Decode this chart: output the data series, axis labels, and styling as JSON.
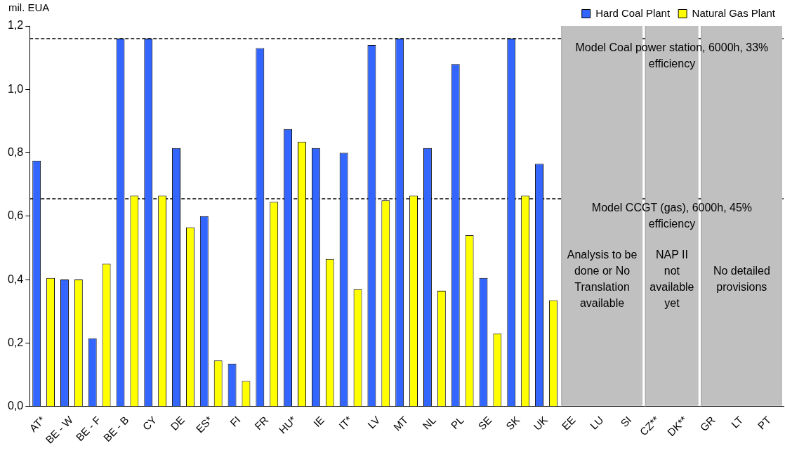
{
  "chart_data": {
    "type": "bar",
    "ylabel": "mil. EUA",
    "categories": [
      "AT*",
      "BE - W",
      "BE - F",
      "BE - B",
      "CY",
      "DE",
      "ES*",
      "FI",
      "FR",
      "HU*",
      "IE",
      "IT*",
      "LV",
      "MT",
      "NL",
      "PL",
      "SE",
      "SK",
      "UK",
      "EE",
      "LU",
      "SI",
      "CZ**",
      "DK**",
      "GR",
      "LT",
      "PT"
    ],
    "series": [
      {
        "name": "Hard Coal Plant",
        "color": "#3366ff",
        "values": [
          0.775,
          0.4,
          0.215,
          1.16,
          1.16,
          0.815,
          0.6,
          0.135,
          1.13,
          0.875,
          0.815,
          0.8,
          1.14,
          1.16,
          0.815,
          1.08,
          0.405,
          1.16,
          0.765,
          null,
          null,
          null,
          null,
          null,
          null,
          null,
          null
        ]
      },
      {
        "name": "Natural Gas Plant",
        "color": "#ffff00",
        "values": [
          0.405,
          0.4,
          0.45,
          0.665,
          0.665,
          0.565,
          0.145,
          0.08,
          0.645,
          0.835,
          0.465,
          0.37,
          0.65,
          0.665,
          0.365,
          0.54,
          0.23,
          0.665,
          0.335,
          null,
          null,
          null,
          null,
          null,
          null,
          null,
          null
        ]
      }
    ],
    "ylim": [
      0,
      1.2
    ],
    "yticks": [
      {
        "value": 0,
        "label": "0,0"
      },
      {
        "value": 0.2,
        "label": "0,2"
      },
      {
        "value": 0.4,
        "label": "0,4"
      },
      {
        "value": 0.6,
        "label": "0,6"
      },
      {
        "value": 0.8,
        "label": "0,8"
      },
      {
        "value": 1,
        "label": "1,0"
      },
      {
        "value": 1.2,
        "label": "1,2"
      }
    ],
    "ref_lines": [
      {
        "axis": "y",
        "value": 1.16,
        "label": "Model Coal power station, 6000h, 33% efficiency",
        "color": "#000000",
        "line_style": "dashed"
      },
      {
        "axis": "y",
        "value": 0.655,
        "label": "Model CCGT (gas), 6000h, 45% efficiency",
        "color": "#000000",
        "line_style": "dashed"
      }
    ],
    "bands": [
      {
        "axis": "x",
        "from": "EE",
        "to": "SI",
        "label": "Analysis to be done or No Translation available",
        "color": "#c0c0c0"
      },
      {
        "axis": "x",
        "from": "CZ**",
        "to": "DK**",
        "label": "NAP II not available yet",
        "color": "#c0c0c0"
      },
      {
        "axis": "x",
        "from": "GR",
        "to": "PT",
        "label": "No detailed provisions",
        "color": "#c0c0c0"
      }
    ],
    "grid": false,
    "legend": "top right"
  }
}
